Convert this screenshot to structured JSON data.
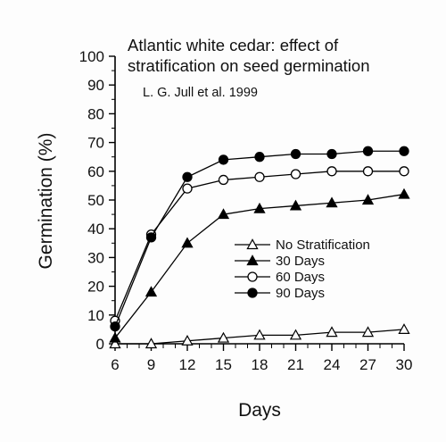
{
  "chart_data": {
    "type": "line",
    "title_line1": "Atlantic white cedar:  effect of",
    "title_line2": "stratification on seed germination",
    "subtitle": "L. G. Jull et al. 1999",
    "xlabel": "Days",
    "ylabel": "Germination (%)",
    "xlim": [
      6,
      30
    ],
    "ylim": [
      0,
      100
    ],
    "x_ticks": [
      6,
      9,
      12,
      15,
      18,
      21,
      24,
      27,
      30
    ],
    "y_ticks": [
      0,
      10,
      20,
      30,
      40,
      50,
      60,
      70,
      80,
      90,
      100
    ],
    "x": [
      6,
      9,
      12,
      15,
      18,
      21,
      24,
      27,
      30
    ],
    "grid": false,
    "legend_position": "center-right",
    "series": [
      {
        "name": "No Stratification",
        "marker": "open-triangle",
        "values": [
          0,
          0,
          1,
          2,
          3,
          3,
          4,
          4,
          5
        ]
      },
      {
        "name": "30 Days",
        "marker": "filled-triangle",
        "values": [
          2,
          18,
          35,
          45,
          47,
          48,
          49,
          50,
          52
        ]
      },
      {
        "name": "60 Days",
        "marker": "open-circle",
        "values": [
          8,
          38,
          54,
          57,
          58,
          59,
          60,
          60,
          60
        ]
      },
      {
        "name": "90 Days",
        "marker": "filled-circle",
        "values": [
          6,
          37,
          58,
          64,
          65,
          66,
          66,
          67,
          67
        ]
      }
    ],
    "colors": {
      "line": "#000000",
      "background": "#ffffff"
    }
  }
}
